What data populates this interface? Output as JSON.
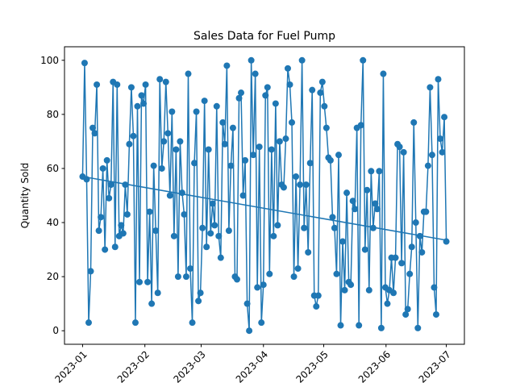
{
  "chart_data": {
    "type": "line",
    "title": "Sales Data for Fuel Pump",
    "xlabel": "",
    "ylabel": "Quantity Sold",
    "x_start": "2023-01-01",
    "x_end": "2023-07-01",
    "xlim": [
      "2022-12-23",
      "2023-07-10"
    ],
    "ylim": [
      -5,
      105
    ],
    "x_ticks": [
      {
        "date": "2023-01-01",
        "label": "2023-01"
      },
      {
        "date": "2023-02-01",
        "label": "2023-02"
      },
      {
        "date": "2023-03-01",
        "label": "2023-03"
      },
      {
        "date": "2023-04-01",
        "label": "2023-04"
      },
      {
        "date": "2023-05-01",
        "label": "2023-05"
      },
      {
        "date": "2023-06-01",
        "label": "2023-06"
      },
      {
        "date": "2023-07-01",
        "label": "2023-07"
      }
    ],
    "y_ticks": [
      0,
      20,
      40,
      60,
      80,
      100
    ],
    "grid": false,
    "legend": "none",
    "color": "#1f77b4",
    "trend_line": {
      "x": [
        "2023-01-01",
        "2023-07-01"
      ],
      "y": [
        57.0,
        33.5
      ]
    },
    "series": [
      {
        "values": [
          57,
          99,
          56,
          3,
          22,
          75,
          73,
          91,
          37,
          42,
          60,
          30,
          63,
          49,
          54,
          92,
          31,
          91,
          35,
          39,
          36,
          54,
          43,
          69,
          90,
          72,
          3,
          83,
          18,
          87,
          84,
          91,
          18,
          44,
          10,
          61,
          37,
          14,
          93,
          60,
          70,
          92,
          73,
          50,
          81,
          35,
          67,
          20,
          70,
          51,
          43,
          20,
          95,
          23,
          3,
          62,
          81,
          11,
          14,
          38,
          85,
          31,
          67,
          36,
          47,
          39,
          83,
          35,
          27,
          77,
          69,
          98,
          37,
          61,
          75,
          20,
          19,
          86,
          88,
          50,
          63,
          10,
          0,
          100,
          65,
          95,
          16,
          68,
          3,
          17,
          87,
          90,
          21,
          67,
          35,
          84,
          39,
          70,
          54,
          53,
          71,
          97,
          91,
          77,
          20,
          57,
          23,
          54,
          100,
          38,
          54,
          29,
          62,
          89,
          13,
          9,
          13,
          88,
          92,
          83,
          75,
          64,
          63,
          42,
          38,
          21,
          65,
          2,
          33,
          15,
          51,
          18,
          17,
          48,
          45,
          75,
          2,
          76,
          100,
          30,
          52,
          15,
          59,
          38,
          47,
          45,
          59,
          1,
          95,
          16,
          10,
          15,
          27,
          14,
          27,
          69,
          68,
          25,
          66,
          6,
          8,
          21,
          31,
          77,
          40,
          1,
          35,
          29,
          44,
          44,
          61,
          90,
          65,
          16,
          6,
          93,
          71,
          66,
          79,
          33
        ]
      }
    ]
  }
}
